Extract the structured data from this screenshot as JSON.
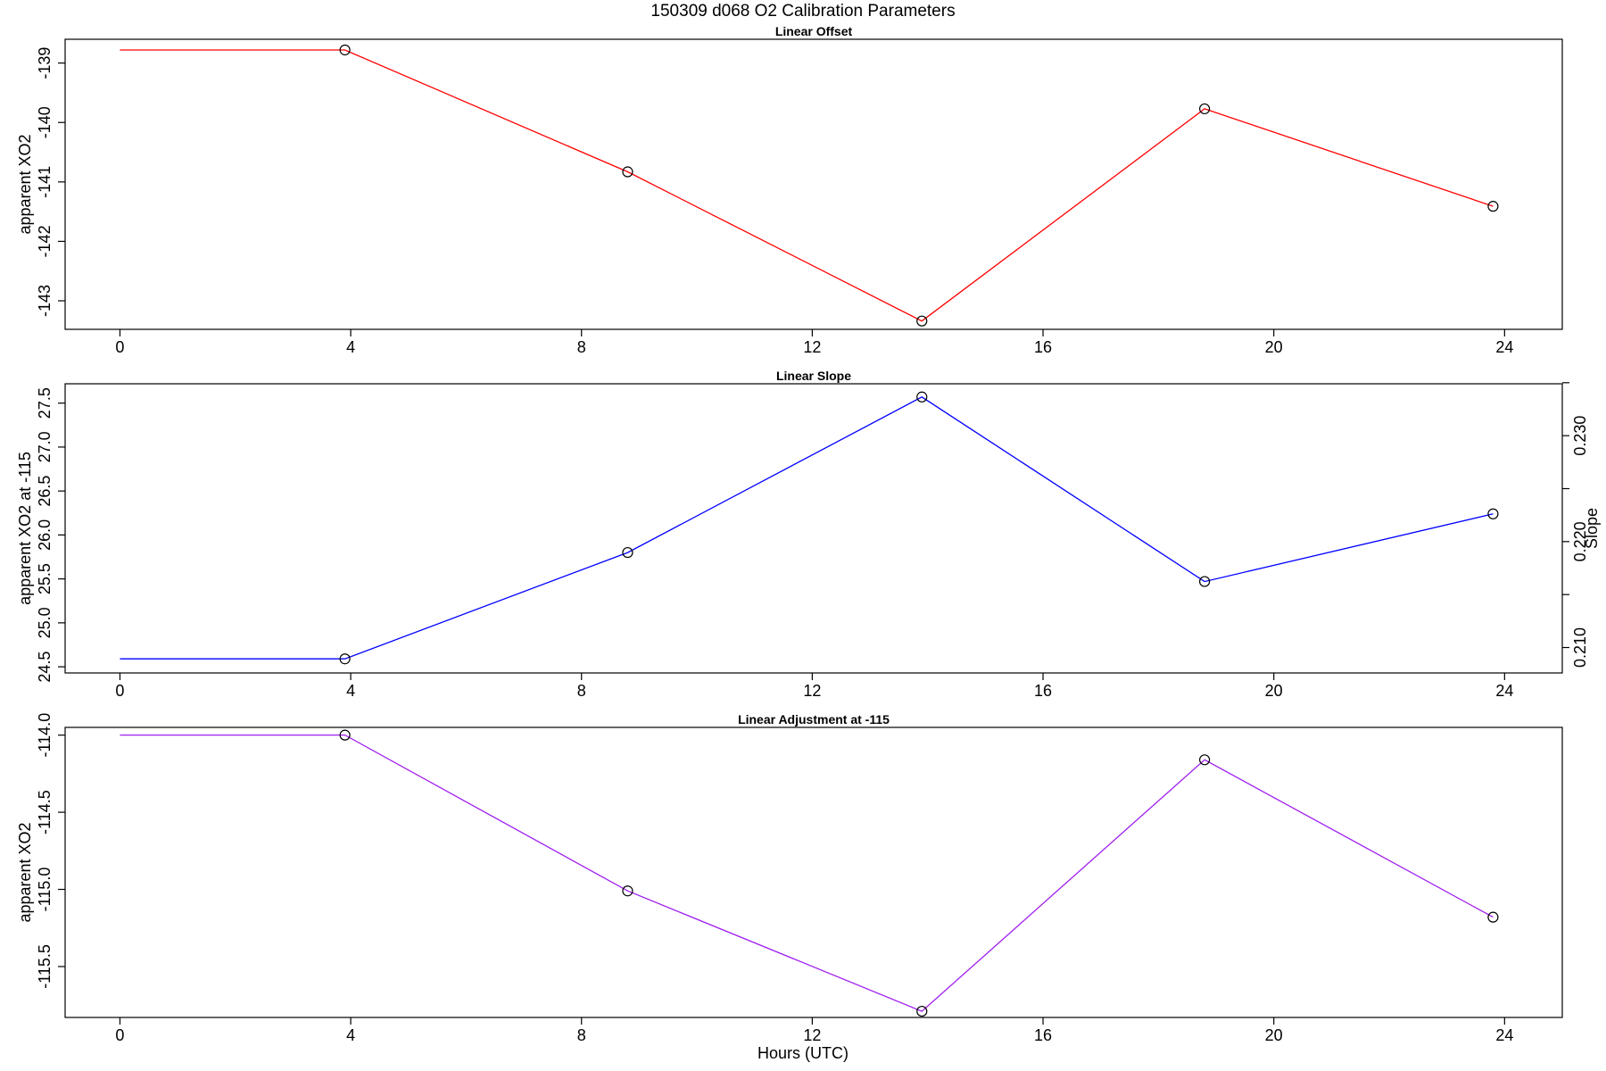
{
  "figure": {
    "title": "150309   d068   O2 Calibration Parameters",
    "xlabel": "Hours (UTC)"
  },
  "chart_data": [
    {
      "type": "line",
      "title": "Linear Offset",
      "xlabel": "",
      "ylabel": "apparent XO2",
      "xlim": [
        -0.95,
        25.0
      ],
      "ylim": [
        -143.48,
        -138.6
      ],
      "x_ticks": [
        "0",
        "4",
        "8",
        "12",
        "16",
        "20",
        "24"
      ],
      "y_ticks": [
        "-139",
        "-140",
        "-141",
        "-142",
        "-143"
      ],
      "grid": false,
      "color": "#ff0000",
      "series": [
        {
          "x": [
            0,
            3.9,
            8.8,
            13.9,
            18.8,
            23.8
          ],
          "y": [
            -138.78,
            -138.78,
            -140.83,
            -143.34,
            -139.77,
            -141.41
          ]
        }
      ],
      "markers_start_index": 1
    },
    {
      "type": "line",
      "title": "Linear Slope",
      "xlabel": "",
      "ylabel": "apparent XO2 at -115",
      "ylabel_right": "Slope",
      "xlim": [
        -0.95,
        25.0
      ],
      "ylim": [
        24.43,
        27.72
      ],
      "ylim_right": [
        0.2076,
        0.2349
      ],
      "x_ticks": [
        "0",
        "4",
        "8",
        "12",
        "16",
        "20",
        "24"
      ],
      "y_ticks": [
        "24.5",
        "25.0",
        "25.5",
        "26.0",
        "26.5",
        "27.0",
        "27.5"
      ],
      "y_ticks_right": [
        "0.210",
        "",
        "0.220",
        "",
        "0.230",
        ""
      ],
      "y_ticks_right_values": [
        0.21,
        0.215,
        0.22,
        0.225,
        0.23,
        0.235
      ],
      "grid": false,
      "color": "#0000ff",
      "series": [
        {
          "x": [
            0,
            3.9,
            8.8,
            13.9,
            18.8,
            23.8
          ],
          "y": [
            24.59,
            24.59,
            25.8,
            27.57,
            25.47,
            26.24
          ]
        }
      ],
      "markers_start_index": 1
    },
    {
      "type": "line",
      "title": "Linear Adjustment at -115",
      "xlabel": "Hours (UTC)",
      "ylabel": "apparent XO2",
      "xlim": [
        -0.95,
        25.0
      ],
      "ylim": [
        -115.83,
        -113.95
      ],
      "x_ticks": [
        "0",
        "4",
        "8",
        "12",
        "16",
        "20",
        "24"
      ],
      "y_ticks": [
        "-114.0",
        "-114.5",
        "-115.0",
        "-115.5"
      ],
      "grid": false,
      "color": "#a020f0",
      "series": [
        {
          "x": [
            0,
            3.9,
            8.8,
            13.9,
            18.8,
            23.8
          ],
          "y": [
            -114.0,
            -114.0,
            -115.01,
            -115.79,
            -114.16,
            -115.18
          ]
        }
      ],
      "markers_start_index": 1
    }
  ]
}
